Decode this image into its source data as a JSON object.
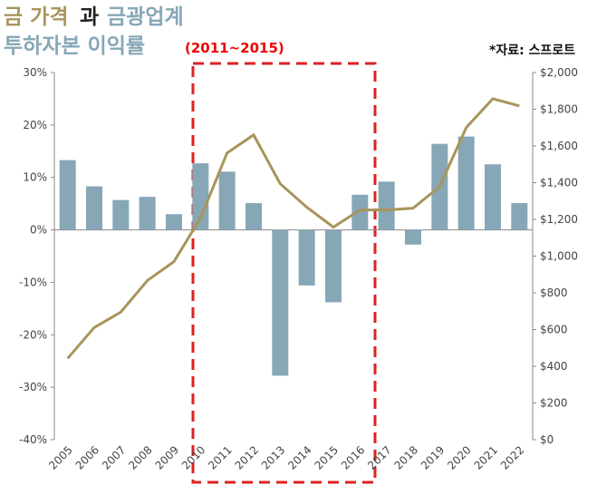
{
  "chart_data": {
    "type": "bar-line",
    "title_parts": [
      "금 가격",
      "과",
      "금광업계",
      "투하자본 이익률"
    ],
    "annotation": "(2011~2015)",
    "source": "*자료: 스프로트",
    "categories": [
      "2005",
      "2006",
      "2007",
      "2008",
      "2009",
      "2010",
      "2011",
      "2012",
      "2013",
      "2014",
      "2015",
      "2016",
      "2017",
      "2018",
      "2019",
      "2020",
      "2021",
      "2022"
    ],
    "series": [
      {
        "name": "투하자본 이익률",
        "type": "bar",
        "color": "#87a7b7",
        "values": [
          13.3,
          8.3,
          5.7,
          6.3,
          3.0,
          12.7,
          11.1,
          5.1,
          -27.8,
          -10.6,
          -13.8,
          6.7,
          9.2,
          -2.8,
          16.4,
          17.8,
          12.5,
          5.1
        ]
      },
      {
        "name": "금 가격",
        "type": "line",
        "axis": "y2",
        "color": "#a8955c",
        "values": [
          443,
          611,
          695,
          867,
          970,
          1207,
          1562,
          1660,
          1394,
          1266,
          1158,
          1251,
          1251,
          1261,
          1379,
          1700,
          1857,
          1818
        ]
      }
    ],
    "ylim": [
      -40,
      30
    ],
    "yticks": [
      {
        "value": -40,
        "label": "-40%"
      },
      {
        "value": -30,
        "label": "-30%"
      },
      {
        "value": -20,
        "label": "-20%"
      },
      {
        "value": -10,
        "label": "-10%"
      },
      {
        "value": 0,
        "label": "0%"
      },
      {
        "value": 10,
        "label": "10%"
      },
      {
        "value": 20,
        "label": "20%"
      },
      {
        "value": 30,
        "label": "30%"
      }
    ],
    "y2lim": [
      0,
      2000
    ],
    "y2ticks": [
      {
        "value": 0,
        "label": "$0"
      },
      {
        "value": 200,
        "label": "$200"
      },
      {
        "value": 400,
        "label": "$400"
      },
      {
        "value": 600,
        "label": "$600"
      },
      {
        "value": 800,
        "label": "$800"
      },
      {
        "value": 1000,
        "label": "$1,000"
      },
      {
        "value": 1200,
        "label": "$1,200"
      },
      {
        "value": 1400,
        "label": "$1,400"
      },
      {
        "value": 1600,
        "label": "$1,600"
      },
      {
        "value": 1800,
        "label": "$1,800"
      },
      {
        "value": 2000,
        "label": "$2,000"
      }
    ]
  }
}
